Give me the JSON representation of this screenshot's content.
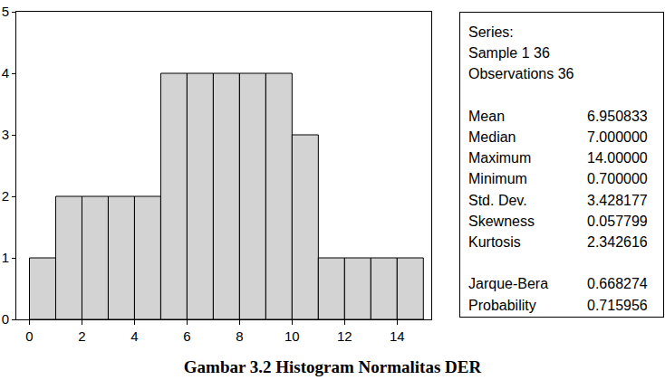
{
  "chart_data": {
    "type": "histogram",
    "bins": [
      0,
      1,
      2,
      3,
      4,
      5,
      6,
      7,
      8,
      9,
      10,
      11,
      12,
      13,
      14,
      15
    ],
    "values": [
      1,
      2,
      2,
      2,
      2,
      4,
      4,
      4,
      4,
      4,
      3,
      1,
      1,
      1,
      1
    ],
    "color": "#d3d3d3",
    "xlim": [
      -0.5,
      15.3
    ],
    "xticks": [
      0,
      2,
      4,
      6,
      8,
      10,
      12,
      14
    ],
    "ylim": [
      0,
      5
    ],
    "yticks": [
      0,
      1,
      2,
      3,
      4,
      5
    ],
    "grid": false,
    "stats_header": [
      "Series:",
      "Sample 1 36",
      "Observations 36"
    ],
    "stats": [
      {
        "label": "Mean",
        "value": "6.950833"
      },
      {
        "label": "Median",
        "value": "7.000000"
      },
      {
        "label": "Maximum",
        "value": "14.00000"
      },
      {
        "label": "Minimum",
        "value": "0.700000"
      },
      {
        "label": "Std. Dev.",
        "value": "3.428177"
      },
      {
        "label": "Skewness",
        "value": "0.057799"
      },
      {
        "label": "Kurtosis",
        "value": "2.342616"
      }
    ],
    "tests": [
      {
        "label": "Jarque-Bera",
        "value": "0.668274"
      },
      {
        "label": "Probability",
        "value": "0.715956"
      }
    ],
    "caption": "Gambar 3.2 Histogram Normalitas DER"
  }
}
